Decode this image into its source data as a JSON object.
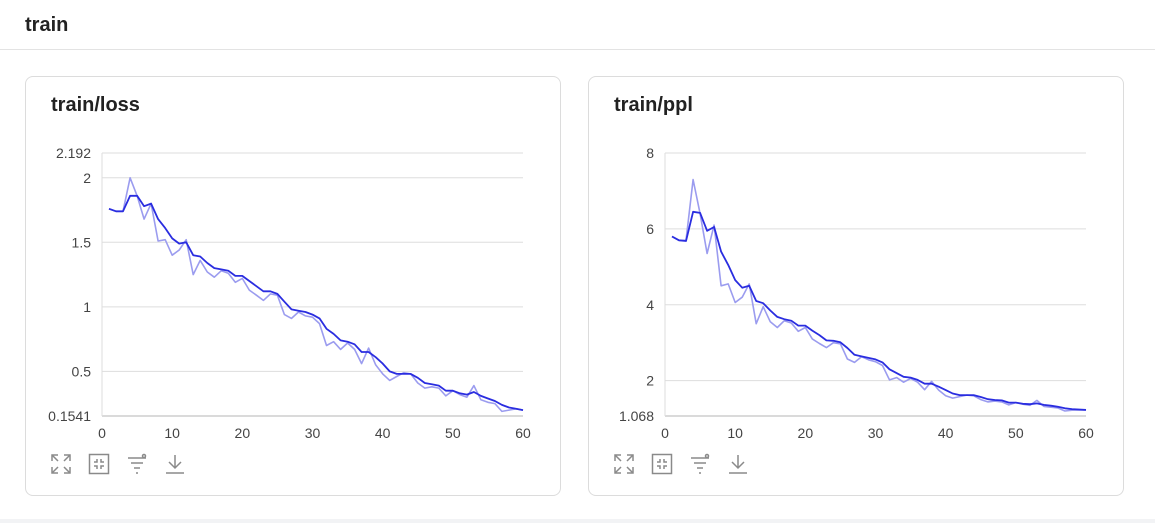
{
  "section": {
    "title": "train"
  },
  "charts": [
    {
      "title": "train/loss"
    },
    {
      "title": "train/ppl"
    }
  ],
  "toolbar_icons": [
    "fullscreen-icon",
    "fit-view-icon",
    "filter-icon",
    "download-icon"
  ],
  "colors": {
    "smoothed": "#2a2de0",
    "raw": "#9b9cef",
    "grid": "#dddddd"
  },
  "chart_data": [
    {
      "type": "line",
      "title": "train/loss",
      "xlabel": "",
      "ylabel": "",
      "xlim": [
        0,
        60
      ],
      "ylim": [
        0.1541,
        2.192
      ],
      "xticks": [
        "0",
        "10",
        "20",
        "30",
        "40",
        "50",
        "60"
      ],
      "xtick_values": [
        0,
        10,
        20,
        30,
        40,
        50,
        60
      ],
      "yticks": [
        "0.1541",
        "0.5",
        "1",
        "1.5",
        "2",
        "2.192"
      ],
      "ytick_values": [
        0.1541,
        0.5,
        1,
        1.5,
        2,
        2.192
      ],
      "grid": true,
      "x": [
        1,
        2,
        3,
        4,
        5,
        6,
        7,
        8,
        9,
        10,
        11,
        12,
        13,
        14,
        15,
        16,
        17,
        18,
        19,
        20,
        21,
        22,
        23,
        24,
        25,
        26,
        27,
        28,
        29,
        30,
        31,
        32,
        33,
        34,
        35,
        36,
        37,
        38,
        39,
        40,
        41,
        42,
        43,
        44,
        45,
        46,
        47,
        48,
        49,
        50,
        51,
        52,
        53,
        54,
        55,
        56,
        57,
        58,
        59,
        60
      ],
      "series": [
        {
          "values": [
            1.76,
            1.74,
            1.74,
            2.0,
            1.86,
            1.68,
            1.8,
            1.51,
            1.52,
            1.4,
            1.44,
            1.52,
            1.25,
            1.36,
            1.27,
            1.23,
            1.28,
            1.26,
            1.19,
            1.22,
            1.13,
            1.09,
            1.05,
            1.1,
            1.09,
            0.94,
            0.91,
            0.96,
            0.93,
            0.92,
            0.87,
            0.7,
            0.73,
            0.67,
            0.72,
            0.67,
            0.56,
            0.68,
            0.55,
            0.48,
            0.43,
            0.46,
            0.49,
            0.48,
            0.41,
            0.37,
            0.38,
            0.37,
            0.31,
            0.35,
            0.32,
            0.3,
            0.39,
            0.28,
            0.26,
            0.25,
            0.19,
            0.2,
            0.21,
            0.2
          ]
        },
        {
          "values": [
            1.76,
            1.74,
            1.74,
            1.86,
            1.86,
            1.78,
            1.8,
            1.68,
            1.61,
            1.53,
            1.49,
            1.5,
            1.4,
            1.39,
            1.34,
            1.3,
            1.29,
            1.28,
            1.24,
            1.24,
            1.2,
            1.16,
            1.12,
            1.12,
            1.1,
            1.04,
            0.98,
            0.97,
            0.96,
            0.94,
            0.91,
            0.83,
            0.79,
            0.74,
            0.73,
            0.71,
            0.65,
            0.65,
            0.61,
            0.56,
            0.5,
            0.48,
            0.48,
            0.48,
            0.45,
            0.41,
            0.4,
            0.39,
            0.35,
            0.35,
            0.33,
            0.32,
            0.34,
            0.31,
            0.29,
            0.27,
            0.24,
            0.22,
            0.21,
            0.2
          ]
        }
      ]
    },
    {
      "type": "line",
      "title": "train/ppl",
      "xlabel": "",
      "ylabel": "",
      "xlim": [
        0,
        60
      ],
      "ylim": [
        1.068,
        8.0
      ],
      "xticks": [
        "0",
        "10",
        "20",
        "30",
        "40",
        "50",
        "60"
      ],
      "xtick_values": [
        0,
        10,
        20,
        30,
        40,
        50,
        60
      ],
      "yticks": [
        "1.068",
        "2",
        "4",
        "6",
        "8"
      ],
      "ytick_values": [
        1.068,
        2,
        4,
        6,
        8
      ],
      "grid": true,
      "x": [
        1,
        2,
        3,
        4,
        5,
        6,
        7,
        8,
        9,
        10,
        11,
        12,
        13,
        14,
        15,
        16,
        17,
        18,
        19,
        20,
        21,
        22,
        23,
        24,
        25,
        26,
        27,
        28,
        29,
        30,
        31,
        32,
        33,
        34,
        35,
        36,
        37,
        38,
        39,
        40,
        41,
        42,
        43,
        44,
        45,
        46,
        47,
        48,
        49,
        50,
        51,
        52,
        53,
        54,
        55,
        56,
        57,
        58,
        59,
        60
      ],
      "series": [
        {
          "values": [
            5.8,
            5.7,
            5.7,
            7.3,
            6.4,
            5.35,
            6.1,
            4.5,
            4.55,
            4.06,
            4.2,
            4.55,
            3.5,
            3.95,
            3.55,
            3.4,
            3.58,
            3.52,
            3.3,
            3.4,
            3.1,
            2.98,
            2.87,
            3.0,
            2.97,
            2.57,
            2.48,
            2.63,
            2.55,
            2.5,
            2.4,
            2.02,
            2.08,
            1.96,
            2.06,
            1.96,
            1.76,
            1.98,
            1.75,
            1.6,
            1.54,
            1.58,
            1.62,
            1.6,
            1.5,
            1.44,
            1.46,
            1.44,
            1.36,
            1.42,
            1.38,
            1.35,
            1.48,
            1.32,
            1.3,
            1.28,
            1.2,
            1.22,
            1.23,
            1.22
          ]
        },
        {
          "values": [
            5.8,
            5.7,
            5.68,
            6.45,
            6.42,
            5.95,
            6.05,
            5.4,
            5.05,
            4.65,
            4.45,
            4.5,
            4.1,
            4.04,
            3.85,
            3.68,
            3.62,
            3.58,
            3.45,
            3.45,
            3.32,
            3.2,
            3.06,
            3.05,
            3.01,
            2.86,
            2.68,
            2.64,
            2.6,
            2.56,
            2.48,
            2.3,
            2.2,
            2.1,
            2.08,
            2.02,
            1.92,
            1.92,
            1.84,
            1.75,
            1.66,
            1.62,
            1.62,
            1.62,
            1.57,
            1.51,
            1.49,
            1.48,
            1.42,
            1.42,
            1.39,
            1.38,
            1.4,
            1.36,
            1.34,
            1.31,
            1.27,
            1.25,
            1.24,
            1.23
          ]
        }
      ]
    }
  ]
}
